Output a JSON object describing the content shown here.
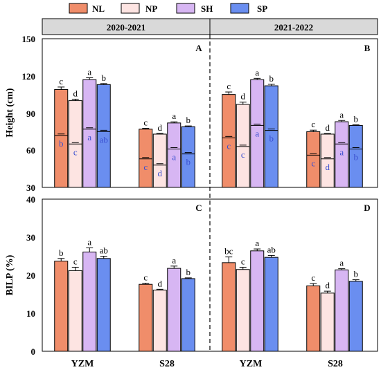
{
  "legend": [
    {
      "label": "NL",
      "color": "#f08d6a"
    },
    {
      "label": "NP",
      "color": "#fde4e2"
    },
    {
      "label": "SH",
      "color": "#d7b6f3"
    },
    {
      "label": "SP",
      "color": "#6a8ef0"
    }
  ],
  "seasons": [
    "2020-2021",
    "2021-2022"
  ],
  "inner_letter_color": "#3a4fd0",
  "chart_data": [
    {
      "type": "bar",
      "title": "",
      "ylabel": "Height (cm)",
      "ylim": [
        30,
        150
      ],
      "yticks": [
        "30",
        "60",
        "90",
        "120",
        "150"
      ],
      "panels": [
        {
          "panel": "A",
          "season": "2020-2021",
          "categories": [
            "YZM",
            "S28"
          ],
          "series": [
            {
              "name": "NL",
              "values": [
                109,
                77
              ],
              "errors": [
                2.0,
                0.7
              ],
              "inner_values": [
                72,
                53
              ],
              "sig": [
                "c",
                "c"
              ],
              "inner_sig": [
                "b",
                "c"
              ]
            },
            {
              "name": "NP",
              "values": [
                100,
                73
              ],
              "errors": [
                1.2,
                0.6
              ],
              "inner_values": [
                65,
                48
              ],
              "sig": [
                "d",
                "d"
              ],
              "inner_sig": [
                "c",
                "d"
              ]
            },
            {
              "name": "SH",
              "values": [
                117,
                82
              ],
              "errors": [
                1.5,
                0.9
              ],
              "inner_values": [
                77,
                61
              ],
              "sig": [
                "a",
                "a"
              ],
              "inner_sig": [
                "a",
                "a"
              ]
            },
            {
              "name": "SP",
              "values": [
                113,
                79
              ],
              "errors": [
                0.8,
                0.6
              ],
              "inner_values": [
                75,
                57
              ],
              "sig": [
                "b",
                "b"
              ],
              "inner_sig": [
                "ab",
                "b"
              ]
            }
          ]
        },
        {
          "panel": "B",
          "season": "2021-2022",
          "categories": [
            "YZM",
            "S28"
          ],
          "series": [
            {
              "name": "NL",
              "values": [
                105,
                75
              ],
              "errors": [
                2.0,
                1.2
              ],
              "inner_values": [
                70,
                56
              ],
              "sig": [
                "c",
                "c"
              ],
              "inner_sig": [
                "c",
                "c"
              ]
            },
            {
              "name": "NP",
              "values": [
                97,
                73
              ],
              "errors": [
                1.8,
                0.5
              ],
              "inner_values": [
                63,
                53
              ],
              "sig": [
                "d",
                "d"
              ],
              "inner_sig": [
                "c",
                "d"
              ]
            },
            {
              "name": "SH",
              "values": [
                117,
                83
              ],
              "errors": [
                1.0,
                1.0
              ],
              "inner_values": [
                80,
                65
              ],
              "sig": [
                "a",
                "a"
              ],
              "inner_sig": [
                "a",
                "a"
              ]
            },
            {
              "name": "SP",
              "values": [
                112,
                80
              ],
              "errors": [
                1.2,
                0.5
              ],
              "inner_values": [
                76,
                61
              ],
              "sig": [
                "b",
                "b"
              ],
              "inner_sig": [
                "b",
                "b"
              ]
            }
          ]
        }
      ]
    },
    {
      "type": "bar",
      "title": "",
      "ylabel": "BILP (%)",
      "ylim": [
        0,
        40
      ],
      "yticks": [
        "0",
        "10",
        "20",
        "30",
        "40"
      ],
      "panels": [
        {
          "panel": "C",
          "season": "2020-2021",
          "categories": [
            "YZM",
            "S28"
          ],
          "series": [
            {
              "name": "NL",
              "values": [
                23.7,
                17.6
              ],
              "errors": [
                0.7,
                0.3
              ],
              "sig": [
                "b",
                "c"
              ]
            },
            {
              "name": "NP",
              "values": [
                21.2,
                16.1
              ],
              "errors": [
                0.9,
                0.2
              ],
              "sig": [
                "c",
                "d"
              ]
            },
            {
              "name": "SH",
              "values": [
                26.1,
                21.8
              ],
              "errors": [
                1.1,
                0.6
              ],
              "sig": [
                "a",
                "a"
              ]
            },
            {
              "name": "SP",
              "values": [
                24.4,
                19.1
              ],
              "errors": [
                0.6,
                0.2
              ],
              "sig": [
                "ab",
                "b"
              ]
            }
          ]
        },
        {
          "panel": "D",
          "season": "2021-2022",
          "categories": [
            "YZM",
            "S28"
          ],
          "series": [
            {
              "name": "NL",
              "values": [
                23.3,
                17.2
              ],
              "errors": [
                1.5,
                0.6
              ],
              "sig": [
                "bc",
                "c"
              ]
            },
            {
              "name": "NP",
              "values": [
                21.5,
                15.3
              ],
              "errors": [
                0.6,
                0.5
              ],
              "sig": [
                "c",
                "d"
              ]
            },
            {
              "name": "SH",
              "values": [
                26.4,
                21.4
              ],
              "errors": [
                0.5,
                0.3
              ],
              "sig": [
                "a",
                "a"
              ]
            },
            {
              "name": "SP",
              "values": [
                24.7,
                18.4
              ],
              "errors": [
                0.5,
                0.4
              ],
              "sig": [
                "ab",
                "b"
              ]
            }
          ]
        }
      ]
    }
  ]
}
